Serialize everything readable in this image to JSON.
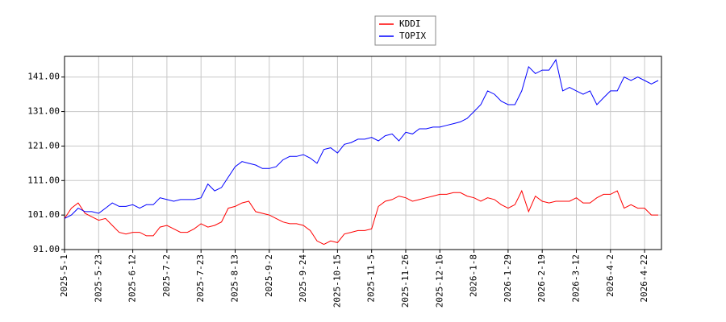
{
  "chart_data": {
    "type": "line",
    "categories": [
      "2025-5-1",
      null,
      null,
      null,
      null,
      "2025-5-23",
      null,
      null,
      null,
      null,
      "2025-6-12",
      null,
      null,
      null,
      null,
      "2025-7-2",
      null,
      null,
      null,
      null,
      "2025-7-23",
      null,
      null,
      null,
      null,
      "2025-8-13",
      null,
      null,
      null,
      null,
      "2025-9-2",
      null,
      null,
      null,
      null,
      "2025-9-24",
      null,
      null,
      null,
      null,
      "2025-10-15",
      null,
      null,
      null,
      null,
      "2025-11-5",
      null,
      null,
      null,
      null,
      "2025-11-26",
      null,
      null,
      null,
      null,
      "2025-12-16",
      null,
      null,
      null,
      null,
      "2026-1-8",
      null,
      null,
      null,
      null,
      "2026-1-29",
      null,
      null,
      null,
      null,
      "2026-2-19",
      null,
      null,
      null,
      null,
      "2026-3-12",
      null,
      null,
      null,
      null,
      "2026-4-2",
      null,
      null,
      null,
      null,
      "2026-4-22",
      null,
      null
    ],
    "series": [
      {
        "name": "KDDI",
        "color": "#ff0000",
        "values": [
          100,
          103,
          104.5,
          101.5,
          100.5,
          99.5,
          100,
          98,
          96,
          95.5,
          96,
          96,
          95,
          95,
          97.5,
          98,
          97,
          96,
          96,
          97,
          98.5,
          97.5,
          98,
          99,
          103,
          103.5,
          104.5,
          105,
          102,
          101.5,
          101,
          100,
          99,
          98.5,
          98.5,
          98,
          96.5,
          93.5,
          92.5,
          93.5,
          93,
          95.5,
          96,
          96.5,
          96.5,
          97,
          103.5,
          105,
          105.5,
          106.5,
          106,
          105,
          105.5,
          106,
          106.5,
          107,
          107,
          107.5,
          107.5,
          106.5,
          106,
          105,
          106,
          105.5,
          104,
          103,
          104,
          108,
          102,
          106.5,
          105,
          104.5,
          105,
          105,
          105,
          106,
          104.5,
          104.5,
          106,
          107,
          107,
          108,
          103,
          104,
          103,
          103,
          101,
          101
        ]
      },
      {
        "name": "TOPIX",
        "color": "#0000ff",
        "values": [
          100,
          101,
          103,
          102,
          102,
          101.5,
          103,
          104.5,
          103.5,
          103.5,
          104,
          103,
          104,
          104,
          106,
          105.5,
          105,
          105.5,
          105.5,
          105.5,
          106,
          110,
          108,
          109,
          112,
          115,
          116.5,
          116,
          115.5,
          114.5,
          114.5,
          115,
          117,
          118,
          118,
          118.5,
          117.5,
          116,
          120,
          120.5,
          119,
          121.5,
          122,
          123,
          123,
          123.5,
          122.5,
          124,
          124.5,
          122.5,
          125,
          124.5,
          126,
          126,
          126.5,
          126.5,
          127,
          127.5,
          128,
          129,
          131,
          133,
          137,
          136,
          134,
          133,
          133,
          137,
          144,
          142,
          143,
          143,
          146,
          137,
          138,
          137,
          136,
          137,
          133,
          135,
          137,
          137,
          141,
          140,
          141,
          140,
          139,
          140
        ]
      }
    ],
    "ylim": [
      91,
      147
    ],
    "yticks": [
      {
        "value": 91,
        "label": "91.00"
      },
      {
        "value": 101,
        "label": "101.00"
      },
      {
        "value": 111,
        "label": "111.00"
      },
      {
        "value": 121,
        "label": "121.00"
      },
      {
        "value": 131,
        "label": "131.00"
      },
      {
        "value": 141,
        "label": "141.00"
      }
    ],
    "grid": true
  }
}
